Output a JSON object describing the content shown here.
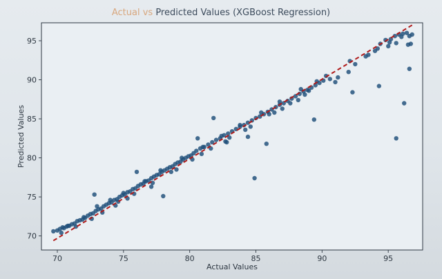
{
  "chart_data": {
    "type": "scatter",
    "title": "Actual vs Predicted Values (XGBoost Regression)",
    "xlabel": "Actual Values",
    "ylabel": "Predicted Values",
    "xlim": [
      68.8,
      97.6
    ],
    "ylim": [
      68.2,
      97.3
    ],
    "xticks": [
      70,
      75,
      80,
      85,
      90,
      95
    ],
    "yticks": [
      70,
      75,
      80,
      85,
      90,
      95
    ],
    "grid": false,
    "legend": "none",
    "series": [
      {
        "marker": "circle",
        "color": "#1f4e79",
        "x": [
          69.7,
          70.0,
          70.2,
          70.4,
          70.5,
          70.7,
          70.9,
          71.1,
          71.3,
          71.5,
          71.7,
          71.9,
          72.1,
          72.3,
          72.5,
          72.7,
          72.9,
          73.1,
          73.3,
          73.5,
          73.7,
          73.9,
          74.1,
          74.3,
          74.5,
          74.7,
          74.9,
          75.1,
          75.3,
          75.5,
          75.7,
          75.9,
          76.1,
          76.3,
          76.5,
          76.7,
          76.9,
          77.1,
          77.3,
          77.5,
          77.7,
          77.9,
          78.1,
          78.3,
          78.5,
          78.7,
          78.9,
          79.1,
          79.3,
          79.5,
          79.7,
          79.9,
          80.1,
          80.3,
          80.5,
          80.8,
          81.1,
          81.4,
          81.7,
          82.0,
          82.3,
          82.6,
          82.9,
          83.2,
          83.5,
          83.8,
          84.1,
          84.4,
          84.7,
          85.0,
          85.3,
          85.6,
          85.9,
          86.2,
          86.5,
          86.8,
          87.1,
          87.4,
          87.7,
          88.0,
          88.3,
          88.6,
          88.9,
          89.2,
          89.5,
          89.8,
          90.1,
          90.6,
          91.2,
          92.0,
          92.5,
          93.5,
          94.0,
          94.4,
          94.8,
          95.2,
          95.5,
          95.8,
          96.1,
          96.4,
          96.6,
          96.8,
          70.3,
          70.8,
          71.4,
          72.0,
          72.6,
          73.0,
          73.4,
          74.0,
          74.4,
          75.0,
          75.8,
          76.6,
          77.2,
          77.8,
          78.6,
          79.4,
          80.2,
          81.0,
          81.6,
          82.4,
          83.0,
          83.8,
          84.6,
          85.4,
          86.0,
          86.8,
          87.6,
          88.4,
          89.0,
          89.6,
          90.3,
          72.8,
          74.6,
          76.0,
          78.0,
          80.6,
          82.8,
          84.4,
          85.8,
          87.0,
          88.2,
          89.4,
          81.8,
          84.9,
          95.6,
          96.2,
          96.6,
          94.3,
          96.7,
          92.1,
          92.3,
          94.2,
          95.0,
          95.6,
          96.0,
          96.5,
          75.3,
          77.1,
          79.0,
          80.9,
          82.7,
          84.2,
          86.4,
          88.7,
          91.0,
          93.3,
          95.1
        ],
        "y": [
          70.6,
          70.7,
          70.9,
          71.1,
          71.0,
          71.2,
          71.3,
          71.5,
          71.6,
          71.9,
          72.0,
          72.1,
          72.3,
          72.6,
          72.8,
          72.9,
          73.2,
          73.4,
          73.5,
          73.8,
          74.0,
          74.2,
          74.3,
          74.6,
          74.7,
          75.0,
          75.2,
          75.3,
          75.6,
          75.7,
          76.0,
          76.1,
          76.4,
          76.6,
          76.7,
          77.0,
          77.1,
          77.4,
          77.6,
          77.8,
          77.9,
          78.2,
          78.4,
          78.6,
          78.8,
          78.9,
          79.2,
          79.4,
          79.5,
          79.8,
          80.0,
          80.2,
          80.3,
          80.6,
          80.9,
          81.2,
          81.4,
          81.7,
          82.0,
          82.3,
          82.5,
          82.9,
          83.1,
          83.4,
          83.7,
          84.0,
          84.2,
          84.5,
          84.8,
          85.1,
          85.3,
          85.6,
          85.9,
          86.2,
          86.5,
          86.8,
          87.0,
          87.3,
          87.6,
          87.9,
          88.2,
          88.5,
          88.7,
          89.0,
          89.3,
          89.6,
          89.9,
          90.1,
          90.3,
          91.0,
          92.0,
          93.2,
          93.7,
          94.6,
          95.1,
          95.2,
          95.6,
          95.8,
          95.9,
          96.0,
          95.6,
          95.8,
          70.4,
          71.3,
          71.2,
          72.4,
          72.2,
          73.8,
          73.0,
          74.6,
          73.9,
          75.5,
          75.4,
          77.0,
          76.8,
          78.4,
          78.2,
          80.0,
          79.8,
          81.4,
          81.2,
          82.8,
          82.6,
          84.2,
          84.0,
          85.8,
          85.6,
          87.2,
          87.0,
          88.8,
          88.6,
          89.8,
          90.5,
          75.3,
          74.4,
          78.2,
          75.1,
          82.5,
          82.0,
          82.7,
          81.8,
          86.3,
          87.4,
          84.9,
          85.1,
          77.4,
          82.5,
          87.0,
          91.4,
          89.2,
          94.6,
          92.4,
          88.4,
          94.0,
          94.3,
          94.7,
          95.5,
          94.5,
          74.8,
          76.3,
          78.5,
          80.5,
          82.1,
          83.6,
          85.8,
          88.1,
          89.7,
          93.0,
          94.8
        ]
      }
    ],
    "reference_line": {
      "style": "dashed",
      "color": "#b01a1a",
      "from": [
        69.7,
        69.4
      ],
      "to": [
        96.8,
        97.0
      ]
    }
  }
}
